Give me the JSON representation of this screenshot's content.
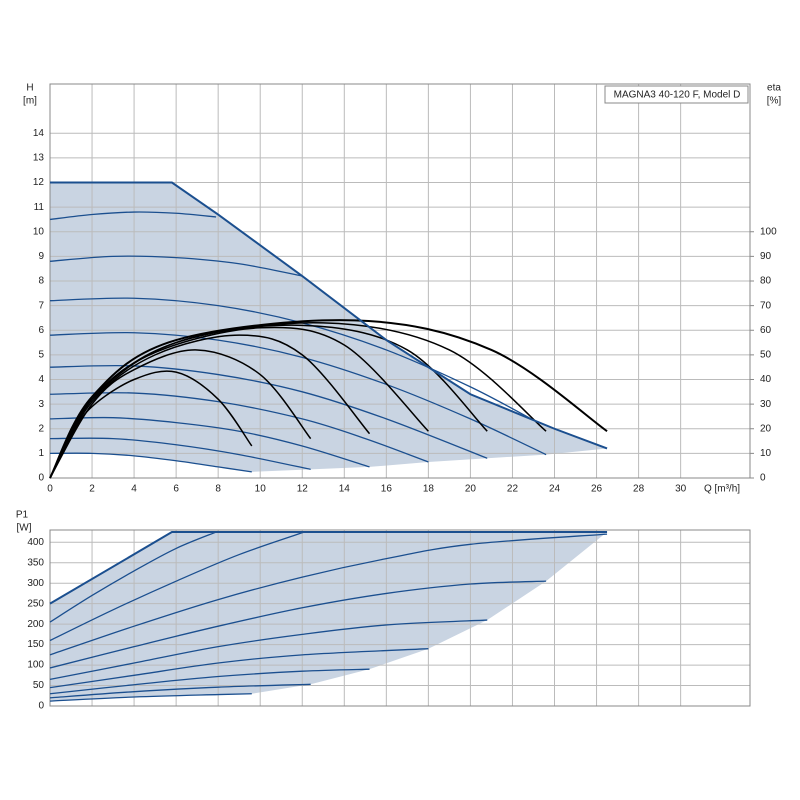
{
  "chart_data": [
    {
      "type": "line",
      "annotation": "MAGNA3 40-120 F, Model D",
      "y_label": "H",
      "y_unit": "[m]",
      "y2_label": "eta",
      "y2_unit": "[%]",
      "x_label": "Q [m³/h]",
      "xlim": [
        0,
        33.3
      ],
      "xticks": [
        0,
        2,
        4,
        6,
        8,
        10,
        12,
        14,
        16,
        18,
        20,
        22,
        24,
        26,
        28,
        30
      ],
      "ylim": [
        0,
        16
      ],
      "yticks": [
        0,
        1,
        2,
        3,
        4,
        5,
        6,
        7,
        8,
        9,
        10,
        11,
        12,
        13,
        14
      ],
      "y2lim": [
        0,
        160
      ],
      "y2ticks": [
        0,
        10,
        20,
        30,
        40,
        50,
        60,
        70,
        80,
        90,
        100
      ],
      "grid": true,
      "region_color": "#c9d4e2",
      "series": [
        {
          "color": "#1b4f8f",
          "width": 2,
          "interpolation": "linear",
          "x": [
            0,
            5.8,
            8,
            12,
            16,
            20,
            24,
            26.5
          ],
          "values": [
            12,
            12,
            10.7,
            8.2,
            5.6,
            3.4,
            2.0,
            1.2
          ]
        },
        {
          "color": "#1b4f8f",
          "width": 1.3,
          "x": [
            0,
            2,
            4,
            6,
            7.9
          ],
          "values": [
            10.5,
            10.7,
            10.8,
            10.75,
            10.6
          ]
        },
        {
          "color": "#1b4f8f",
          "width": 1.3,
          "x": [
            0,
            3,
            6,
            9,
            12
          ],
          "values": [
            8.8,
            9.0,
            8.95,
            8.7,
            8.2
          ]
        },
        {
          "color": "#1b4f8f",
          "width": 1.3,
          "x": [
            0,
            4,
            8,
            12,
            16,
            20,
            23
          ],
          "values": [
            7.2,
            7.3,
            7.0,
            6.3,
            5.2,
            3.7,
            2.35
          ]
        },
        {
          "color": "#1b4f8f",
          "width": 1.3,
          "x": [
            0,
            4,
            8,
            12,
            16,
            20,
            23.6
          ],
          "values": [
            5.8,
            5.9,
            5.6,
            4.9,
            3.8,
            2.4,
            0.95
          ]
        },
        {
          "color": "#1b4f8f",
          "width": 1.3,
          "x": [
            0,
            4,
            8,
            12,
            16,
            20.8
          ],
          "values": [
            4.5,
            4.55,
            4.2,
            3.5,
            2.4,
            0.8
          ]
        },
        {
          "color": "#1b4f8f",
          "width": 1.3,
          "x": [
            0,
            4,
            8,
            12,
            15,
            18
          ],
          "values": [
            3.4,
            3.45,
            3.1,
            2.4,
            1.6,
            0.65
          ]
        },
        {
          "color": "#1b4f8f",
          "width": 1.3,
          "x": [
            0,
            3,
            6,
            9,
            12,
            15.2
          ],
          "values": [
            2.4,
            2.45,
            2.25,
            1.9,
            1.3,
            0.45
          ]
        },
        {
          "color": "#1b4f8f",
          "width": 1.3,
          "x": [
            0,
            3,
            6,
            9,
            12.4
          ],
          "values": [
            1.6,
            1.6,
            1.35,
            0.95,
            0.35
          ]
        },
        {
          "color": "#1b4f8f",
          "width": 1.3,
          "x": [
            0,
            2,
            4,
            6,
            8,
            9.6
          ],
          "values": [
            1.0,
            1.0,
            0.9,
            0.7,
            0.45,
            0.25
          ]
        },
        {
          "color": "#000000",
          "width": 1.5,
          "axis": "y2",
          "x": [
            0,
            1,
            2,
            4,
            6,
            8,
            9.6
          ],
          "values": [
            0,
            17,
            29,
            40,
            43,
            32,
            13
          ]
        },
        {
          "color": "#000000",
          "width": 1.5,
          "axis": "y2",
          "x": [
            0,
            2,
            4,
            7,
            10,
            12.4
          ],
          "values": [
            0,
            30,
            44,
            52,
            42,
            16
          ]
        },
        {
          "color": "#000000",
          "width": 1.5,
          "axis": "y2",
          "x": [
            0,
            2,
            5,
            9,
            12,
            15.2
          ],
          "values": [
            0,
            31,
            50,
            58,
            50,
            18
          ]
        },
        {
          "color": "#000000",
          "width": 1.5,
          "axis": "y2",
          "x": [
            0,
            2,
            5,
            10,
            14,
            18
          ],
          "values": [
            0,
            32,
            51,
            61,
            54,
            19
          ]
        },
        {
          "color": "#000000",
          "width": 1.5,
          "axis": "y2",
          "x": [
            0,
            2,
            6,
            12,
            17,
            20.8
          ],
          "values": [
            0,
            32,
            55,
            62,
            52,
            19
          ]
        },
        {
          "color": "#000000",
          "width": 1.5,
          "axis": "y2",
          "x": [
            0,
            2,
            6,
            13,
            19,
            23.6
          ],
          "values": [
            0,
            32,
            55,
            63,
            52,
            19
          ]
        },
        {
          "color": "#000000",
          "width": 2,
          "axis": "y2",
          "x": [
            0,
            2,
            6,
            14.5,
            21,
            26.5
          ],
          "values": [
            0,
            33,
            56,
            64,
            52,
            19
          ]
        }
      ]
    },
    {
      "type": "line",
      "y_label": "P1",
      "y_unit": "[W]",
      "xlim": [
        0,
        33.3
      ],
      "ylim": [
        0,
        430
      ],
      "yticks": [
        0,
        50,
        100,
        150,
        200,
        250,
        300,
        350,
        400
      ],
      "grid": true,
      "region_color": "#c9d4e2",
      "series": [
        {
          "color": "#1b4f8f",
          "width": 2,
          "interpolation": "linear",
          "x": [
            0,
            5.8,
            26.5
          ],
          "values": [
            250,
            425,
            425
          ]
        },
        {
          "color": "#1b4f8f",
          "width": 1.3,
          "x": [
            0,
            2,
            4,
            6,
            7.9
          ],
          "values": [
            205,
            270,
            330,
            385,
            425
          ]
        },
        {
          "color": "#1b4f8f",
          "width": 1.3,
          "x": [
            0,
            3,
            6,
            9,
            12.1
          ],
          "values": [
            160,
            235,
            305,
            370,
            425
          ]
        },
        {
          "color": "#1b4f8f",
          "width": 1.3,
          "x": [
            0,
            4,
            8,
            12,
            16,
            20,
            26.5
          ],
          "values": [
            125,
            195,
            260,
            315,
            360,
            395,
            420
          ]
        },
        {
          "color": "#1b4f8f",
          "width": 1.3,
          "x": [
            0,
            4,
            8,
            12,
            16,
            20,
            23.6
          ],
          "values": [
            93,
            145,
            195,
            240,
            275,
            298,
            305
          ]
        },
        {
          "color": "#1b4f8f",
          "width": 1.3,
          "x": [
            0,
            4,
            8,
            12,
            16,
            20.8
          ],
          "values": [
            65,
            105,
            145,
            175,
            198,
            210
          ]
        },
        {
          "color": "#1b4f8f",
          "width": 1.3,
          "x": [
            0,
            4,
            8,
            12,
            18
          ],
          "values": [
            45,
            75,
            105,
            125,
            140
          ]
        },
        {
          "color": "#1b4f8f",
          "width": 1.3,
          "x": [
            0,
            4,
            8,
            12,
            15.2
          ],
          "values": [
            30,
            52,
            72,
            85,
            90
          ]
        },
        {
          "color": "#1b4f8f",
          "width": 1.3,
          "x": [
            0,
            4,
            8,
            12.4
          ],
          "values": [
            20,
            35,
            46,
            53
          ]
        },
        {
          "color": "#1b4f8f",
          "width": 1.3,
          "x": [
            0,
            4,
            8,
            9.6
          ],
          "values": [
            12,
            22,
            28,
            30
          ]
        }
      ]
    }
  ]
}
